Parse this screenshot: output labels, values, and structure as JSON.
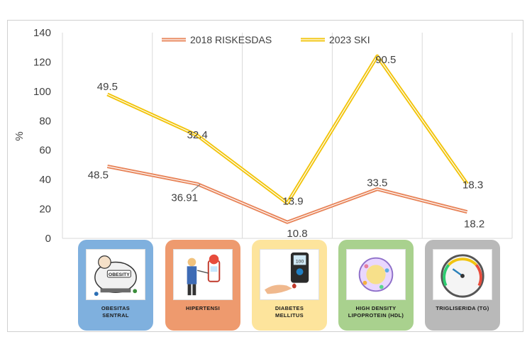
{
  "chart_data": {
    "type": "line",
    "ylabel": "%",
    "ylim": [
      0,
      140
    ],
    "yticks": [
      "0",
      "20",
      "40",
      "60",
      "80",
      "100",
      "120",
      "140"
    ],
    "categories": [
      "OBESITAS SENTRAL",
      "HIPERTENSI",
      "DIABETES MELLITUS",
      "HIGH DENSITY LIPOPROTEIN (HDL)",
      "TRIGLISERIDA (TG)"
    ],
    "series": [
      {
        "name": "2018 RISKESDAS",
        "color": "#E8855A",
        "values": [
          49,
          37,
          11,
          33.5,
          18
        ],
        "labels": [
          "48.5",
          "36.91",
          "10.8",
          "33.5",
          "18.2"
        ]
      },
      {
        "name": "2023 SKI",
        "color": "#F2C40C",
        "values": [
          98,
          70,
          24,
          124,
          37
        ],
        "labels": [
          "49.5",
          "32.4",
          "13.9",
          "90.5",
          "18.3"
        ]
      }
    ],
    "grid": "vertical",
    "legend": "top-center"
  },
  "cards": [
    {
      "caption": "OBESITAS\nSENTRAL",
      "color": "#7FB0DE",
      "icon": "obesity-icon"
    },
    {
      "caption": "HIPERTENSI",
      "color": "#EE9A6E",
      "icon": "hypertension-icon"
    },
    {
      "caption": "DIABETES\nMELLITUS",
      "color": "#FDE49C",
      "icon": "glucose-meter-icon"
    },
    {
      "caption": "HIGH DENSITY\nLIPOPROTEIN (HDL)",
      "color": "#A9D18E",
      "icon": "lipoprotein-icon"
    },
    {
      "caption": "TRIGLISERIDA (TG)",
      "color": "#B9B9B9",
      "icon": "gauge-icon"
    }
  ],
  "icon_texts": {
    "obesity": "OBESITY",
    "glucose": "100"
  }
}
